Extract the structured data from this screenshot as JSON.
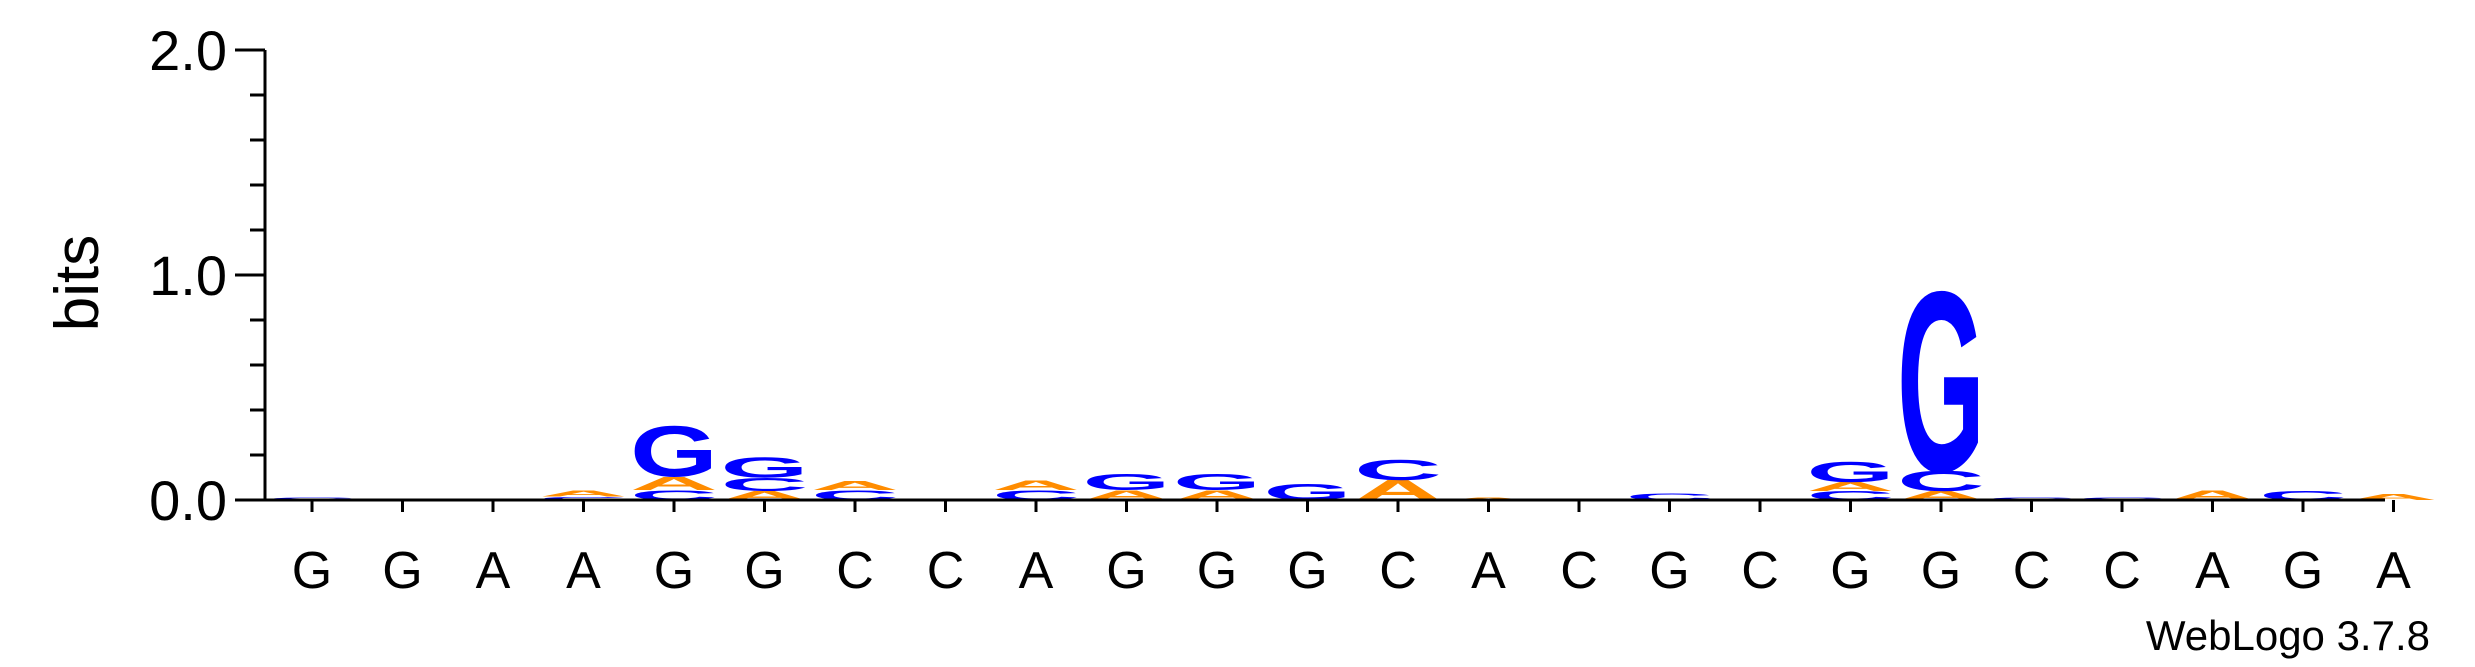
{
  "chart_data": {
    "type": "sequence-logo",
    "ylabel": "bits",
    "ylim": [
      0,
      2.0
    ],
    "yticks": [
      "0.0",
      "1.0",
      "2.0"
    ],
    "y_minor_step": 0.2,
    "positions": [
      "G",
      "G",
      "A",
      "A",
      "G",
      "G",
      "C",
      "C",
      "A",
      "G",
      "G",
      "G",
      "C",
      "A",
      "C",
      "G",
      "C",
      "G",
      "G",
      "C",
      "C",
      "A",
      "G",
      "A"
    ],
    "colors": {
      "A": "#ff8c00",
      "C": "#0000ff",
      "G": "#0000ff",
      "T": "#ff0000"
    },
    "stacks": [
      [
        [
          "C",
          0.01
        ]
      ],
      [],
      [],
      [
        [
          "C",
          0.015
        ],
        [
          "A",
          0.025
        ]
      ],
      [
        [
          "C",
          0.045
        ],
        [
          "A",
          0.06
        ],
        [
          "G",
          0.23
        ]
      ],
      [
        [
          "A",
          0.04
        ],
        [
          "C",
          0.06
        ],
        [
          "G",
          0.09
        ]
      ],
      [
        [
          "C",
          0.045
        ],
        [
          "A",
          0.04
        ]
      ],
      [],
      [
        [
          "C",
          0.045
        ],
        [
          "A",
          0.045
        ]
      ],
      [
        [
          "A",
          0.045
        ],
        [
          "G",
          0.075
        ]
      ],
      [
        [
          "A",
          0.045
        ],
        [
          "G",
          0.075
        ]
      ],
      [
        [
          "G",
          0.075
        ]
      ],
      [
        [
          "A",
          0.09
        ],
        [
          "C",
          0.09
        ]
      ],
      [
        [
          "A",
          0.01
        ]
      ],
      [],
      [
        [
          "C",
          0.03
        ]
      ],
      [],
      [
        [
          "C",
          0.04
        ],
        [
          "A",
          0.04
        ],
        [
          "G",
          0.09
        ]
      ],
      [
        [
          "A",
          0.04
        ],
        [
          "C",
          0.09
        ],
        [
          "G",
          0.82
        ]
      ],
      [
        [
          "C",
          0.01
        ]
      ],
      [
        [
          "C",
          0.01
        ]
      ],
      [
        [
          "A",
          0.045
        ]
      ],
      [
        [
          "C",
          0.04
        ]
      ],
      [
        [
          "A",
          0.025
        ]
      ]
    ],
    "watermark": "WebLogo 3.7.8"
  }
}
